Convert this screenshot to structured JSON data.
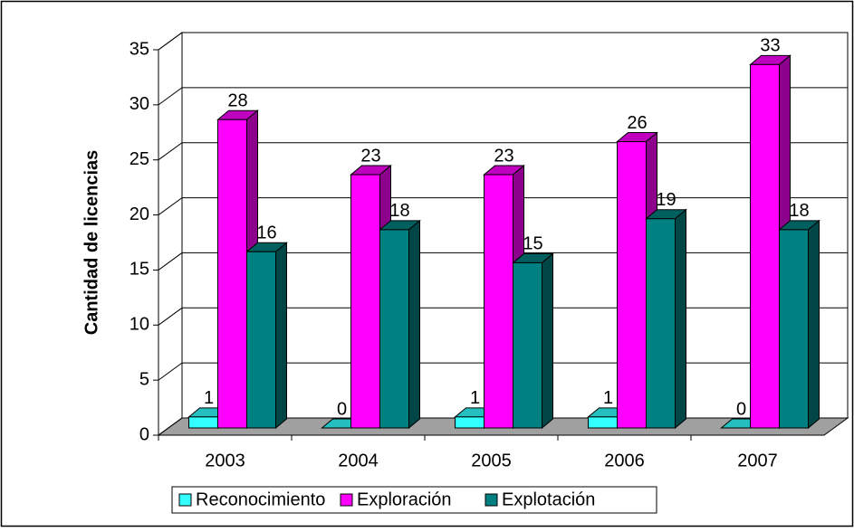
{
  "chart_data": {
    "type": "bar3d",
    "y_axis_label": "Cantidad de licencias",
    "categories": [
      "2003",
      "2004",
      "2005",
      "2006",
      "2007"
    ],
    "series": [
      {
        "name": "Reconocimiento",
        "color": "#33ffff",
        "values": [
          1,
          0,
          1,
          1,
          0
        ]
      },
      {
        "name": "Exploración",
        "color": "#ff00ff",
        "values": [
          28,
          23,
          23,
          26,
          33
        ]
      },
      {
        "name": "Explotación",
        "color": "#008080",
        "values": [
          16,
          18,
          15,
          19,
          18
        ]
      }
    ],
    "ylim": [
      0,
      35
    ],
    "yticks": [
      0,
      5,
      10,
      15,
      20,
      25,
      30,
      35
    ],
    "grid": true,
    "legend": "bottom"
  }
}
